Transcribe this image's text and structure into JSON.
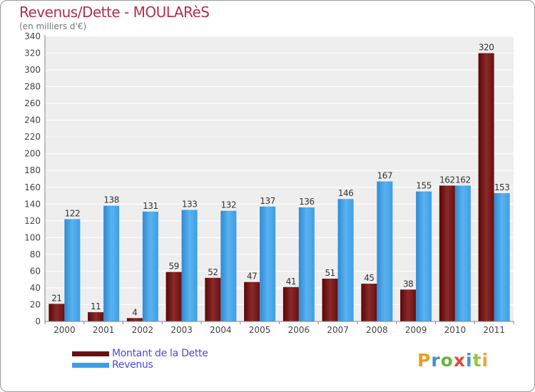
{
  "chart_data": {
    "type": "bar",
    "title": "Revenus/Dette - MOULARèS",
    "subtitle": "(en milliers d'€)",
    "categories": [
      "2000",
      "2001",
      "2002",
      "2003",
      "2004",
      "2005",
      "2006",
      "2007",
      "2008",
      "2009",
      "2010",
      "2011"
    ],
    "series": [
      {
        "name": "Montant de la Dette",
        "color": "#6b1010",
        "values": [
          21,
          11,
          4,
          59,
          52,
          47,
          41,
          51,
          45,
          38,
          162,
          320
        ]
      },
      {
        "name": "Revenus",
        "color": "#3d9ee6",
        "values": [
          122,
          138,
          131,
          133,
          132,
          137,
          136,
          146,
          167,
          155,
          162,
          153
        ]
      }
    ],
    "ylim": [
      0,
      340
    ],
    "ytick_step": 20,
    "grid": true,
    "legend_position": "bottom-left",
    "title_color": "#b03050",
    "legend_text_color": "#4a4ae0"
  },
  "logo": {
    "text": "Proxiti",
    "letters": [
      "P",
      "r",
      "o",
      "x",
      "i",
      "t",
      "i"
    ]
  }
}
